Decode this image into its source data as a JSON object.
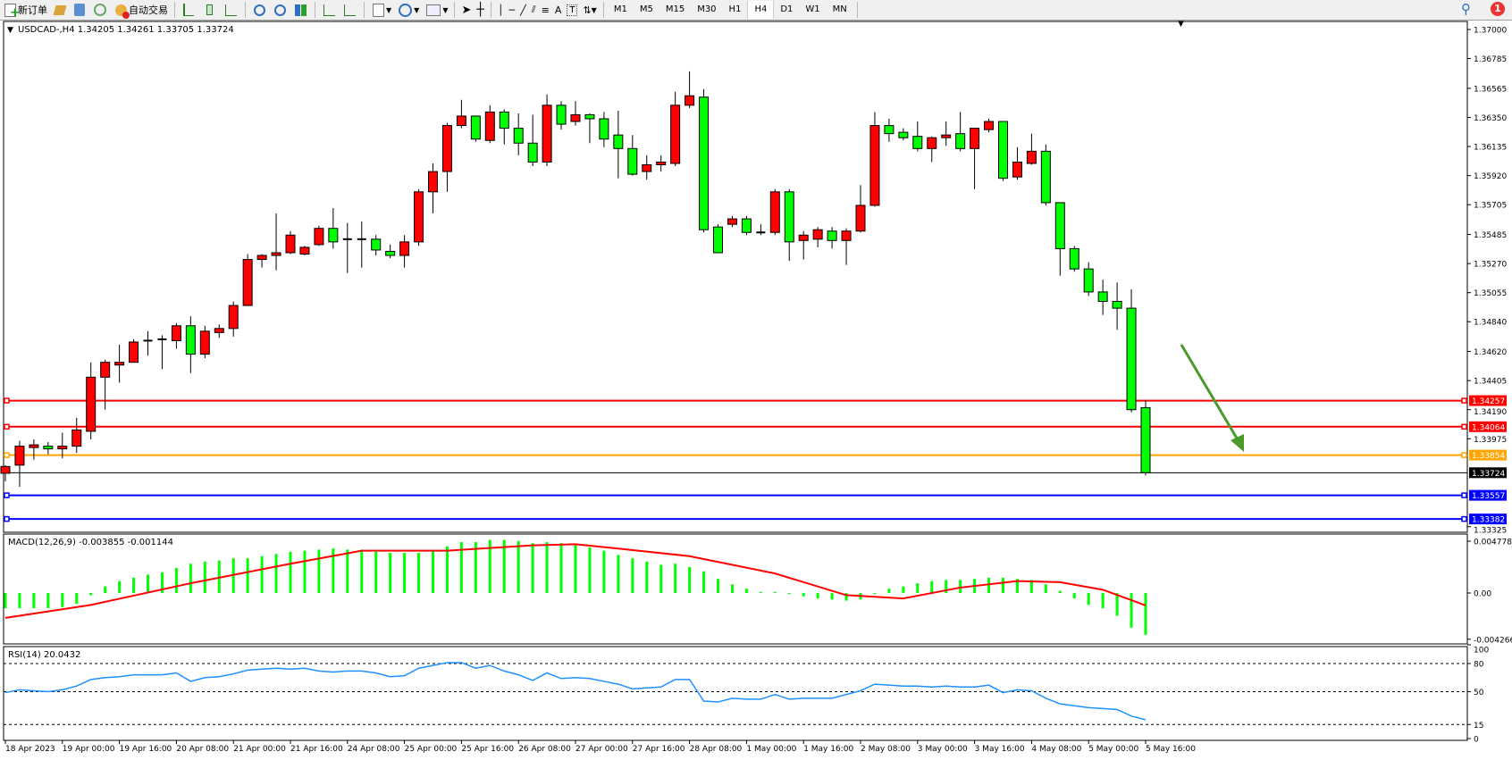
{
  "toolbar": {
    "new_order": "新订单",
    "auto_trading": "自动交易",
    "timeframes": [
      "M1",
      "M5",
      "M15",
      "M30",
      "H1",
      "H4",
      "D1",
      "W1",
      "MN"
    ],
    "active_timeframe": "H4",
    "notification_count": "1"
  },
  "colors": {
    "bull_candle": "#ff0000",
    "bear_candle": "#00ff00",
    "macd_hist": "#00ff00",
    "macd_signal": "#ff0000",
    "rsi_line": "#1e90ff",
    "arrow": "#4a9a2a"
  },
  "main": {
    "header": "USDCAD-,H4  1.34205 1.34261 1.33705 1.33724",
    "price_axis": [
      "1.37000",
      "1.36785",
      "1.36565",
      "1.36350",
      "1.36135",
      "1.35920",
      "1.35705",
      "1.35485",
      "1.35270",
      "1.35055",
      "1.34840",
      "1.34620",
      "1.34405",
      "1.34190",
      "1.33975",
      "1.33325"
    ],
    "levels": [
      {
        "price": "1.34257",
        "color": "#ff0000"
      },
      {
        "price": "1.34064",
        "color": "#ff0000"
      },
      {
        "price": "1.33854",
        "color": "#ffa500"
      },
      {
        "price": "1.33724",
        "color": "#000000"
      },
      {
        "price": "1.33557",
        "color": "#0000ff"
      },
      {
        "price": "1.33382",
        "color": "#0000ff"
      }
    ]
  },
  "chart_data": [
    {
      "type": "candlestick",
      "symbol": "USDCAD-",
      "timeframe": "H4",
      "ylim": [
        1.33325,
        1.37
      ],
      "ohlc": [
        [
          1.3372,
          1.3378,
          1.3366,
          1.3377
        ],
        [
          1.3378,
          1.3396,
          1.3362,
          1.3392
        ],
        [
          1.3391,
          1.3397,
          1.3382,
          1.3393
        ],
        [
          1.3392,
          1.3395,
          1.3386,
          1.339
        ],
        [
          1.339,
          1.3402,
          1.3383,
          1.3392
        ],
        [
          1.3392,
          1.3413,
          1.3387,
          1.3404
        ],
        [
          1.3403,
          1.3454,
          1.3397,
          1.3443
        ],
        [
          1.3443,
          1.3456,
          1.3419,
          1.3454
        ],
        [
          1.3452,
          1.3467,
          1.3439,
          1.3454
        ],
        [
          1.3454,
          1.3471,
          1.3457,
          1.3469
        ],
        [
          1.347,
          1.3477,
          1.3459,
          1.347
        ],
        [
          1.3471,
          1.3474,
          1.3449,
          1.3471
        ],
        [
          1.347,
          1.3483,
          1.3464,
          1.3481
        ],
        [
          1.3481,
          1.3488,
          1.3446,
          1.346
        ],
        [
          1.346,
          1.3481,
          1.3457,
          1.3477
        ],
        [
          1.3476,
          1.3482,
          1.3472,
          1.3479
        ],
        [
          1.3479,
          1.3499,
          1.3473,
          1.3496
        ],
        [
          1.3496,
          1.3534,
          1.3496,
          1.353
        ],
        [
          1.353,
          1.3534,
          1.3524,
          1.3533
        ],
        [
          1.3533,
          1.3564,
          1.3522,
          1.3535
        ],
        [
          1.3535,
          1.3551,
          1.3534,
          1.3548
        ],
        [
          1.3534,
          1.354,
          1.3533,
          1.3539
        ],
        [
          1.3541,
          1.3555,
          1.354,
          1.3553
        ],
        [
          1.3553,
          1.3568,
          1.3538,
          1.3543
        ],
        [
          1.3545,
          1.3557,
          1.352,
          1.3545
        ],
        [
          1.3545,
          1.3558,
          1.3524,
          1.3545
        ],
        [
          1.3545,
          1.3548,
          1.3533,
          1.3537
        ],
        [
          1.3536,
          1.3541,
          1.3531,
          1.3533
        ],
        [
          1.3533,
          1.3548,
          1.3524,
          1.3543
        ],
        [
          1.3543,
          1.3582,
          1.354,
          1.358
        ],
        [
          1.358,
          1.3601,
          1.3564,
          1.3595
        ],
        [
          1.3595,
          1.3631,
          1.358,
          1.3629
        ],
        [
          1.3629,
          1.3648,
          1.3627,
          1.3636
        ],
        [
          1.3636,
          1.3636,
          1.3617,
          1.3619
        ],
        [
          1.3618,
          1.3644,
          1.3616,
          1.3639
        ],
        [
          1.3639,
          1.3641,
          1.3615,
          1.3627
        ],
        [
          1.3627,
          1.3638,
          1.3607,
          1.3616
        ],
        [
          1.3616,
          1.3637,
          1.3599,
          1.3602
        ],
        [
          1.3602,
          1.3652,
          1.3599,
          1.3644
        ],
        [
          1.3644,
          1.3647,
          1.3626,
          1.363
        ],
        [
          1.3632,
          1.3647,
          1.3629,
          1.3637
        ],
        [
          1.3637,
          1.3638,
          1.3616,
          1.3634
        ],
        [
          1.3634,
          1.3639,
          1.3613,
          1.3619
        ],
        [
          1.3622,
          1.364,
          1.359,
          1.3612
        ],
        [
          1.3612,
          1.3622,
          1.3592,
          1.3593
        ],
        [
          1.3595,
          1.3607,
          1.3589,
          1.36
        ],
        [
          1.36,
          1.3607,
          1.3595,
          1.3602
        ],
        [
          1.3601,
          1.3654,
          1.3599,
          1.3644
        ],
        [
          1.3644,
          1.3669,
          1.3642,
          1.3651
        ],
        [
          1.365,
          1.3656,
          1.355,
          1.3552
        ],
        [
          1.3554,
          1.3556,
          1.3535,
          1.3535
        ],
        [
          1.3556,
          1.3562,
          1.3554,
          1.356
        ],
        [
          1.356,
          1.3562,
          1.3548,
          1.355
        ],
        [
          1.355,
          1.3556,
          1.3548,
          1.355
        ],
        [
          1.355,
          1.3582,
          1.3548,
          1.358
        ],
        [
          1.358,
          1.3582,
          1.3529,
          1.3543
        ],
        [
          1.3544,
          1.3551,
          1.353,
          1.3548
        ],
        [
          1.3545,
          1.3554,
          1.3539,
          1.3552
        ],
        [
          1.3551,
          1.3554,
          1.3538,
          1.3544
        ],
        [
          1.3544,
          1.3553,
          1.3526,
          1.3551
        ],
        [
          1.3551,
          1.3585,
          1.355,
          1.357
        ],
        [
          1.357,
          1.3639,
          1.3569,
          1.3629
        ],
        [
          1.3629,
          1.3634,
          1.3617,
          1.3623
        ],
        [
          1.3624,
          1.3627,
          1.3618,
          1.362
        ],
        [
          1.3621,
          1.3632,
          1.361,
          1.3612
        ],
        [
          1.3612,
          1.3621,
          1.3602,
          1.362
        ],
        [
          1.362,
          1.3632,
          1.3614,
          1.3622
        ],
        [
          1.3623,
          1.3639,
          1.361,
          1.3612
        ],
        [
          1.3612,
          1.3627,
          1.3582,
          1.3627
        ],
        [
          1.3626,
          1.3634,
          1.3624,
          1.3632
        ],
        [
          1.3632,
          1.3632,
          1.3588,
          1.359
        ],
        [
          1.3591,
          1.3613,
          1.3589,
          1.3602
        ],
        [
          1.3601,
          1.3623,
          1.36,
          1.361
        ],
        [
          1.361,
          1.3615,
          1.357,
          1.3572
        ],
        [
          1.3572,
          1.3572,
          1.3518,
          1.3538
        ],
        [
          1.3538,
          1.354,
          1.3521,
          1.3523
        ],
        [
          1.3523,
          1.3528,
          1.3503,
          1.3506
        ],
        [
          1.3506,
          1.3515,
          1.3489,
          1.3499
        ],
        [
          1.3499,
          1.3513,
          1.3478,
          1.3494
        ],
        [
          1.3494,
          1.3508,
          1.3417,
          1.3419
        ],
        [
          1.34205,
          1.34261,
          1.33705,
          1.33724
        ]
      ],
      "x_tick_labels": [
        "18 Apr 2023",
        "19 Apr 00:00",
        "19 Apr 16:00",
        "20 Apr 08:00",
        "21 Apr 00:00",
        "21 Apr 16:00",
        "24 Apr 08:00",
        "25 Apr 00:00",
        "25 Apr 16:00",
        "26 Apr 08:00",
        "27 Apr 00:00",
        "27 Apr 16:00",
        "28 Apr 08:00",
        "1 May 00:00",
        "1 May 16:00",
        "2 May 08:00",
        "3 May 00:00",
        "3 May 16:00",
        "4 May 08:00",
        "5 May 00:00",
        "5 May 16:00"
      ]
    },
    {
      "type": "bar",
      "title": "MACD(12,26,9) -0.003855 -0.001144",
      "ylim": [
        -0.004266,
        0.004778
      ],
      "y_tick_labels": [
        "0.004778",
        "0.00",
        "-0.004266"
      ],
      "histogram": [
        -0.0014,
        -0.0014,
        -0.0014,
        -0.0014,
        -0.0013,
        -0.001,
        -0.0002,
        0.0006,
        0.0011,
        0.0014,
        0.0017,
        0.0019,
        0.0023,
        0.0027,
        0.0029,
        0.003,
        0.0032,
        0.0032,
        0.0034,
        0.0036,
        0.0038,
        0.0039,
        0.004,
        0.0041,
        0.004,
        0.004,
        0.0038,
        0.0037,
        0.0037,
        0.0037,
        0.0039,
        0.0043,
        0.0047,
        0.0047,
        0.0049,
        0.0049,
        0.0048,
        0.0046,
        0.0047,
        0.0046,
        0.0044,
        0.0042,
        0.0039,
        0.0035,
        0.0032,
        0.0029,
        0.0026,
        0.0027,
        0.0024,
        0.002,
        0.0013,
        0.0008,
        0.0004,
        0.0001,
        0.0001,
        -0.0001,
        -0.0003,
        -0.0005,
        -0.0006,
        -0.0007,
        -0.0006,
        -0.0001,
        0.0004,
        0.0006,
        0.0009,
        0.0011,
        0.0012,
        0.0012,
        0.0013,
        0.0014,
        0.0014,
        0.0013,
        0.0012,
        0.0008,
        0.0002,
        -0.0005,
        -0.0011,
        -0.0014,
        -0.0021,
        -0.0032,
        -0.003855
      ],
      "signal_points": [
        [
          0,
          -0.0023
        ],
        [
          6,
          -0.0011
        ],
        [
          13,
          0.0009
        ],
        [
          20,
          0.0027
        ],
        [
          25,
          0.0039
        ],
        [
          31,
          0.0039
        ],
        [
          37,
          0.0044
        ],
        [
          40,
          0.0045
        ],
        [
          43,
          0.0041
        ],
        [
          48,
          0.0034
        ],
        [
          54,
          0.0018
        ],
        [
          59,
          -0.0002
        ],
        [
          63,
          -0.0005
        ],
        [
          67,
          0.0005
        ],
        [
          71,
          0.0011
        ],
        [
          74,
          0.001
        ],
        [
          77,
          0.0003
        ],
        [
          80,
          -0.001144
        ]
      ]
    },
    {
      "type": "line",
      "title": "RSI(14) 20.0432",
      "ylim": [
        0,
        100
      ],
      "levels": [
        80,
        50,
        15
      ],
      "y_tick_labels": [
        "100",
        "80",
        "50",
        "15",
        "0"
      ],
      "values": [
        49,
        52,
        51,
        50,
        52,
        56,
        63,
        65,
        66,
        68,
        68,
        68,
        70,
        61,
        65,
        66,
        69,
        73,
        74,
        75,
        74,
        75,
        72,
        71,
        72,
        72,
        70,
        66,
        67,
        75,
        78,
        81,
        81,
        75,
        78,
        72,
        68,
        62,
        70,
        64,
        65,
        64,
        61,
        58,
        53,
        54,
        55,
        63,
        63,
        40,
        39,
        43,
        42,
        42,
        47,
        42,
        43,
        43,
        43,
        47,
        51,
        58,
        57,
        56,
        56,
        55,
        56,
        55,
        55,
        57,
        49,
        52,
        51,
        43,
        37,
        35,
        33,
        32,
        31,
        24,
        20.0432
      ]
    }
  ]
}
